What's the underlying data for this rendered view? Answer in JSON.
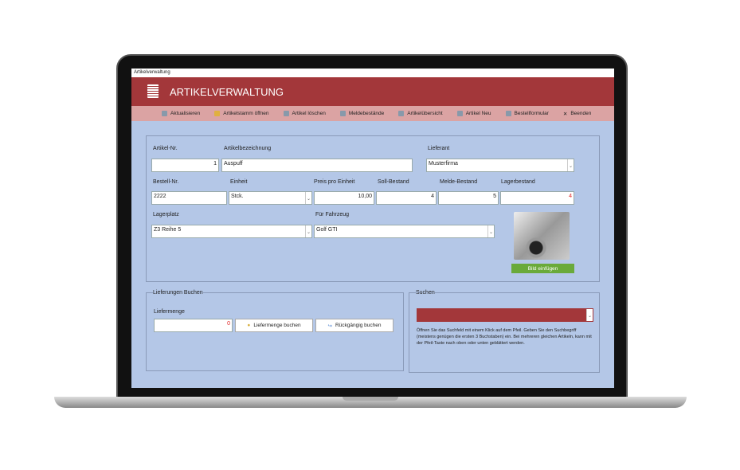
{
  "window_title": "Artikelverwaltung",
  "header": {
    "title": "ARTIKELVERWALTUNG",
    "icon": "form-icon"
  },
  "toolbar": [
    {
      "label": "Aktualisieren",
      "icon": "refresh-icon"
    },
    {
      "label": "Artikelstamm öffnen",
      "icon": "folder-icon"
    },
    {
      "label": "Artikel löschen",
      "icon": "delete-icon"
    },
    {
      "label": "Meldebestände",
      "icon": "report-icon"
    },
    {
      "label": "Artikelübersicht",
      "icon": "list-icon"
    },
    {
      "label": "Artikel Neu",
      "icon": "new-icon"
    },
    {
      "label": "Bestellformular",
      "icon": "order-icon"
    },
    {
      "label": "Beenden",
      "icon": "close-icon"
    }
  ],
  "form": {
    "artikel_nr": {
      "label": "Artikel-Nr.",
      "value": "1"
    },
    "bezeichnung": {
      "label": "Artikelbezeichnung",
      "value": "Auspuff"
    },
    "lieferant": {
      "label": "Lieferant",
      "value": "Musterfirma"
    },
    "bestell_nr": {
      "label": "Bestell-Nr.",
      "value": "2222"
    },
    "einheit": {
      "label": "Einheit",
      "value": "Stck."
    },
    "preis": {
      "label": "Preis pro Einheit",
      "value": "10,00"
    },
    "soll": {
      "label": "Soll-Bestand",
      "value": "4"
    },
    "melde": {
      "label": "Melde-Bestand",
      "value": "5"
    },
    "lager": {
      "label": "Lagerbestand",
      "value": "4"
    },
    "lagerplatz": {
      "label": "Lagerplatz",
      "value": "Z3 Reihe 5"
    },
    "fahrzeug": {
      "label": "Für Fahrzeug",
      "value": "Golf GTI"
    },
    "bild_button": "Bild einfügen"
  },
  "lieferungen": {
    "legend": "Lieferungen Buchen",
    "label": "Liefermenge",
    "value": "0",
    "book": "Liefermenge buchen",
    "undo": "Rückgängig buchen"
  },
  "suchen": {
    "legend": "Suchen",
    "value": "",
    "help": "Öffnen Sie das Suchfeld mit einem Klick auf dem Pfeil. Geben Sie den Suchbegriff (meistens genügen die ersten 3 Buchstaben) ein. Bei mehreren gleichen Artikeln, kann mit der Pfeil-Taste nach oben oder unten geblättert werden."
  },
  "colors": {
    "header": "#a3373a",
    "toolbar": "#dba3a3",
    "body": "#b4c7e7",
    "accent_green": "#6aaa3a",
    "alert_red": "#e02020"
  }
}
